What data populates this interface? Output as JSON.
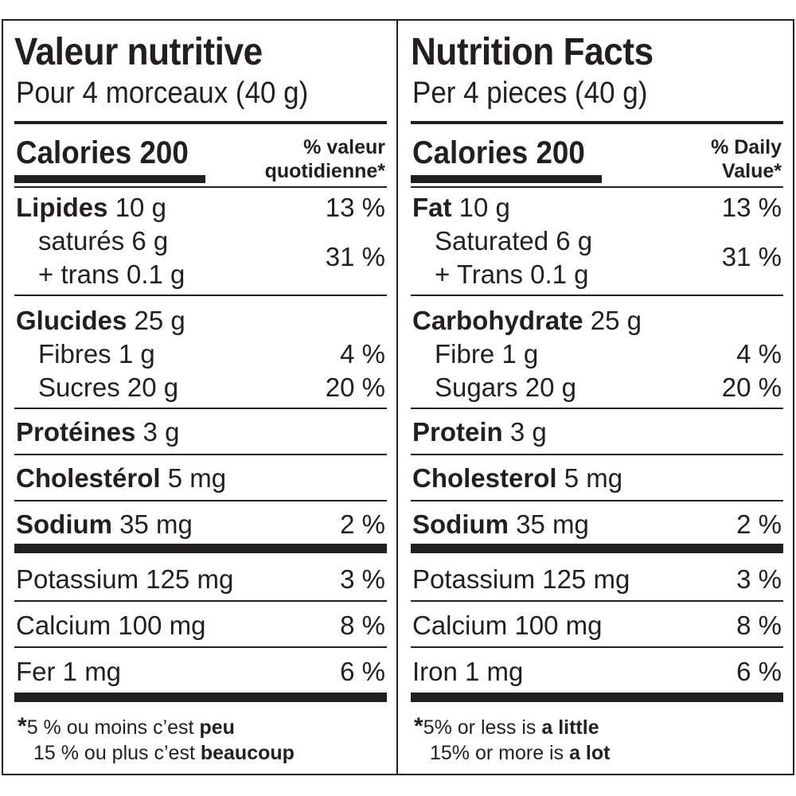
{
  "french": {
    "title": "Valeur nutritive",
    "serving": "Pour 4 morceaux (40 g)",
    "calories_label": "Calories 200",
    "dv_line1": "% valeur",
    "dv_line2": "quotidienne*",
    "fat_label": "Lipides",
    "fat_amount": " 10 g",
    "fat_pct": "13 %",
    "saturated": "saturés 6 g",
    "trans": "+ trans 0.1 g",
    "sat_trans_pct": "31 %",
    "carb_label": "Glucides",
    "carb_amount": " 25 g",
    "fibre": "Fibres 1 g",
    "fibre_pct": "4 %",
    "sugars": "Sucres 20 g",
    "sugars_pct": "20 %",
    "protein_label": "Protéines",
    "protein_amount": " 3 g",
    "cholesterol_label": "Cholestérol",
    "cholesterol_amount": " 5 mg",
    "sodium_label": "Sodium",
    "sodium_amount": " 35 mg",
    "sodium_pct": "2 %",
    "potassium": "Potassium 125 mg",
    "potassium_pct": "3 %",
    "calcium": "Calcium 100 mg",
    "calcium_pct": "8 %",
    "iron": "Fer 1 mg",
    "iron_pct": "6 %",
    "foot_star": "*",
    "foot1_text": "5 % ou moins c’est ",
    "foot1_bold": "peu",
    "foot2_text": "15 % ou plus c’est ",
    "foot2_bold": "beaucoup"
  },
  "english": {
    "title": "Nutrition Facts",
    "serving": "Per 4 pieces (40 g)",
    "calories_label": "Calories 200",
    "dv_line1": "% Daily",
    "dv_line2": "Value*",
    "fat_label": "Fat",
    "fat_amount": " 10 g",
    "fat_pct": "13 %",
    "saturated": "Saturated 6 g",
    "trans": "+ Trans 0.1 g",
    "sat_trans_pct": "31 %",
    "carb_label": "Carbohydrate",
    "carb_amount": " 25 g",
    "fibre": "Fibre 1 g",
    "fibre_pct": "4 %",
    "sugars": "Sugars 20 g",
    "sugars_pct": "20 %",
    "protein_label": "Protein",
    "protein_amount": " 3 g",
    "cholesterol_label": "Cholesterol",
    "cholesterol_amount": " 5 mg",
    "sodium_label": "Sodium",
    "sodium_amount": " 35 mg",
    "sodium_pct": "2 %",
    "potassium": "Potassium 125 mg",
    "potassium_pct": "3 %",
    "calcium": "Calcium 100 mg",
    "calcium_pct": "8 %",
    "iron": "Iron 1 mg",
    "iron_pct": "6 %",
    "foot_star": "*",
    "foot1_text": "5% or less is ",
    "foot1_bold": "a little",
    "foot2_text": "15% or more is ",
    "foot2_bold": "a lot"
  },
  "colors": {
    "ink": "#231f20",
    "background": "#ffffff"
  }
}
